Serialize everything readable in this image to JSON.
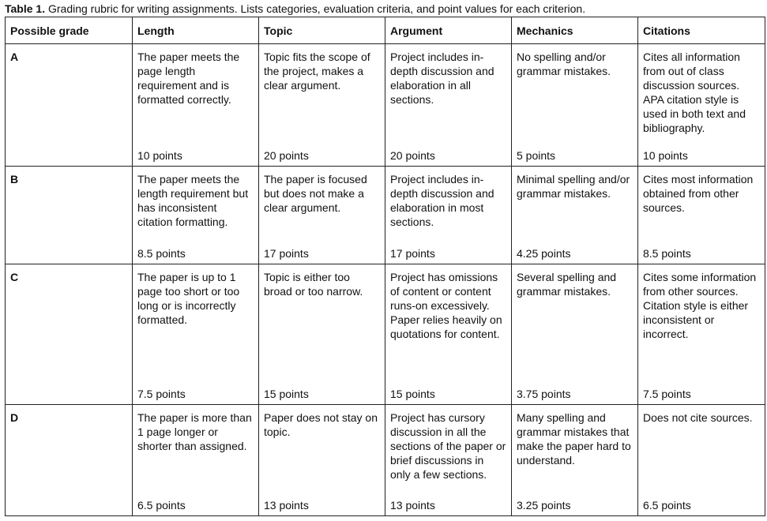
{
  "caption": {
    "label": "Table 1.",
    "text": "Grading rubric for writing assignments. Lists categories, evaluation criteria, and point values for each criterion."
  },
  "headers": [
    "Possible grade",
    "Length",
    "Topic",
    "Argument",
    "Mechanics",
    "Citations"
  ],
  "rows": [
    {
      "grade": "A",
      "cells": [
        {
          "text": "The paper meets the page length requirement and is formatted correctly.",
          "points": "10 points"
        },
        {
          "text": "Topic fits the scope of the project, makes a clear argument.",
          "points": "20 points"
        },
        {
          "text": "Project includes in-depth discussion and elaboration in all sections.",
          "points": "20 points"
        },
        {
          "text": "No spelling and/or grammar mistakes.",
          "points": "5 points"
        },
        {
          "text": "Cites all information from out of class discussion sources. APA citation style is used in both text and bibliography.",
          "points": "10 points"
        }
      ]
    },
    {
      "grade": "B",
      "cells": [
        {
          "text": "The paper meets the length requirement but has inconsistent citation formatting.",
          "points": "8.5 points"
        },
        {
          "text": "The paper is focused but does not make a clear argument.",
          "points": "17 points"
        },
        {
          "text": "Project includes in-depth discussion and elaboration in most sections.",
          "points": "17 points"
        },
        {
          "text": "Minimal spelling and/or grammar mistakes.",
          "points": "4.25 points"
        },
        {
          "text": "Cites most information obtained from other sources.",
          "points": "8.5 points"
        }
      ]
    },
    {
      "grade": "C",
      "cells": [
        {
          "text": "The paper is up to 1 page too short or too long or is incorrectly formatted.",
          "points": "7.5 points"
        },
        {
          "text": "Topic is either too broad or too narrow.",
          "points": "15 points"
        },
        {
          "text": "Project has omissions of content or content runs-on excessively. Paper relies heavily on quotations for content.",
          "points": "15 points"
        },
        {
          "text": "Several spelling and grammar mistakes.",
          "points": "3.75 points"
        },
        {
          "text": "Cites some information from other sources. Citation style is either inconsistent or incorrect.",
          "points": "7.5 points"
        }
      ]
    },
    {
      "grade": "D",
      "cells": [
        {
          "text": "The paper is more than 1 page longer or shorter than assigned.",
          "points": "6.5 points"
        },
        {
          "text": "Paper does not stay on topic.",
          "points": "13 points"
        },
        {
          "text": "Project has cursory discussion in all the sections of the paper or brief discussions in only a few sections.",
          "points": "13 points"
        },
        {
          "text": "Many spelling and grammar mistakes that make the paper hard to understand.",
          "points": "3.25 points"
        },
        {
          "text": "Does not cite sources.",
          "points": "6.5 points"
        }
      ]
    }
  ]
}
